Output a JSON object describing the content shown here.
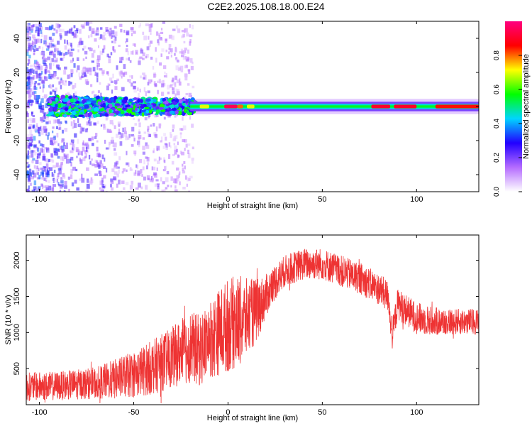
{
  "title": "C2E2.2025.108.18.00.E24",
  "chart_data": [
    {
      "type": "heatmap",
      "xlabel": "Height of straight line (km)",
      "ylabel": "Frequency (Hz)",
      "xlim": [
        -107,
        133
      ],
      "ylim": [
        -50,
        50
      ],
      "xticks": [
        -100,
        -50,
        0,
        50,
        100
      ],
      "yticks": [
        -40,
        -20,
        0,
        20,
        40
      ],
      "colorbar": {
        "label": "Normalized spectral amplitude",
        "range": [
          0,
          1
        ],
        "ticks": [
          "0.0",
          "0.2",
          "0.4",
          "0.6",
          "0.8"
        ]
      },
      "colormap": [
        "#ffffff",
        "#b56cff",
        "#2200ff",
        "#00d5ff",
        "#00ff00",
        "#ffff00",
        "#ff0000",
        "#ff0080"
      ],
      "band": {
        "center_hz": 0,
        "features": [
          {
            "x_range": [
              -107,
              -20
            ],
            "amplitude": 0.3,
            "spread_hz": 50,
            "note": "noisy scatter"
          },
          {
            "x_range": [
              -85,
              -25
            ],
            "amplitude": 0.45,
            "band_halfwidth_hz": 5
          },
          {
            "x_range": [
              -20,
              130
            ],
            "amplitude": 0.55,
            "band_halfwidth_hz": 3
          },
          {
            "x_range": [
              -2,
              5
            ],
            "amplitude": 0.95
          },
          {
            "x_range": [
              76,
              100
            ],
            "amplitude": 0.9
          },
          {
            "x_range": [
              110,
              133
            ],
            "amplitude": 0.85
          }
        ]
      }
    },
    {
      "type": "line",
      "xlabel": "Height of straight line (km)",
      "ylabel": "SNR (10 * v/v)",
      "xlim": [
        -107,
        133
      ],
      "ylim": [
        0,
        2350
      ],
      "xticks": [
        -100,
        -50,
        0,
        50,
        100
      ],
      "yticks": [
        500,
        1000,
        1500,
        2000
      ],
      "color": "#ee3333",
      "envelope": {
        "x": [
          -107,
          -90,
          -70,
          -60,
          -50,
          -40,
          -30,
          -20,
          -15,
          -10,
          -5,
          0,
          5,
          10,
          15,
          20,
          25,
          30,
          40,
          50,
          60,
          70,
          80,
          85,
          87,
          90,
          95,
          100,
          110,
          120,
          133
        ],
        "mean": [
          250,
          260,
          300,
          350,
          420,
          520,
          650,
          800,
          750,
          900,
          1000,
          1100,
          1150,
          1200,
          1300,
          1500,
          1700,
          1850,
          1950,
          1950,
          1850,
          1750,
          1600,
          1500,
          950,
          1400,
          1300,
          1200,
          1150,
          1150,
          1150
        ],
        "spread": [
          200,
          200,
          220,
          280,
          320,
          380,
          420,
          500,
          500,
          550,
          600,
          650,
          650,
          550,
          450,
          300,
          250,
          220,
          220,
          220,
          220,
          220,
          220,
          220,
          200,
          220,
          220,
          220,
          200,
          180,
          180
        ]
      }
    }
  ]
}
